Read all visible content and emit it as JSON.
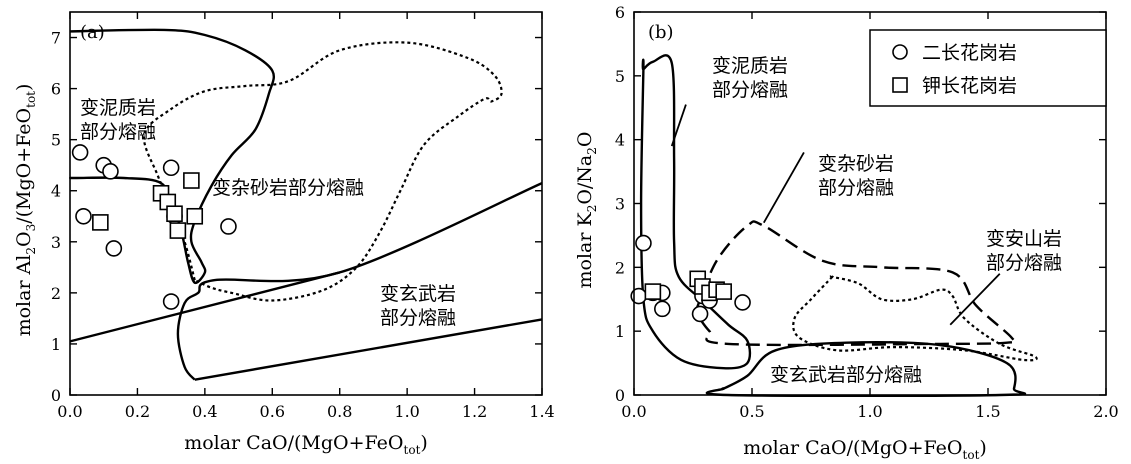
{
  "chart_data": [
    {
      "panel_label": "(a)",
      "type": "scatter",
      "xlabel": "molar CaO/(MgO+FeO",
      "xlabel_sub": "tot",
      "xlabel_end": ")",
      "ylabel_parts": [
        "molar Al",
        "2",
        "O",
        "3",
        "/(MgO+FeO",
        "tot",
        ")"
      ],
      "xlim": [
        0,
        1.4
      ],
      "ylim": [
        0,
        7.5
      ],
      "xticks": [
        0.0,
        0.2,
        0.4,
        0.6,
        0.8,
        1.0,
        1.2,
        1.4
      ],
      "xtick_labels": [
        "0.0",
        "0.2",
        "0.4",
        "0.6",
        "0.8",
        "1.0",
        "1.2",
        "1.4"
      ],
      "yticks": [
        0,
        1,
        2,
        3,
        4,
        5,
        6,
        7
      ],
      "ytick_labels": [
        "0",
        "1",
        "2",
        "3",
        "4",
        "5",
        "6",
        "7"
      ],
      "series": [
        {
          "name": "二长花岗岩",
          "marker": "circle",
          "points": [
            [
              0.03,
              4.75
            ],
            [
              0.04,
              3.5
            ],
            [
              0.1,
              4.5
            ],
            [
              0.12,
              4.38
            ],
            [
              0.13,
              2.87
            ],
            [
              0.3,
              4.45
            ],
            [
              0.31,
              3.5
            ],
            [
              0.3,
              1.83
            ],
            [
              0.47,
              3.3
            ]
          ]
        },
        {
          "name": "钾长花岗岩",
          "marker": "square",
          "points": [
            [
              0.09,
              3.38
            ],
            [
              0.27,
              3.95
            ],
            [
              0.29,
              3.78
            ],
            [
              0.31,
              3.55
            ],
            [
              0.32,
              3.22
            ],
            [
              0.36,
              4.2
            ],
            [
              0.37,
              3.5
            ]
          ]
        }
      ],
      "regions": [
        {
          "label_lines": [
            "变泥质岩",
            "部分熔融"
          ],
          "style": "solid",
          "outline": [
            [
              0.0,
              7.12
            ],
            [
              0.28,
              7.15
            ],
            [
              0.4,
              7.05
            ],
            [
              0.52,
              6.75
            ],
            [
              0.6,
              6.35
            ],
            [
              0.59,
              5.9
            ],
            [
              0.55,
              5.2
            ],
            [
              0.48,
              4.7
            ],
            [
              0.42,
              4.1
            ],
            [
              0.37,
              3.4
            ],
            [
              0.36,
              3.0
            ],
            [
              0.39,
              2.6
            ],
            [
              0.4,
              2.4
            ],
            [
              0.37,
              2.2
            ],
            [
              0.35,
              2.6
            ],
            [
              0.33,
              3.2
            ],
            [
              0.3,
              3.7
            ],
            [
              0.27,
              4.15
            ],
            [
              0.16,
              4.25
            ],
            [
              0.02,
              4.25
            ],
            [
              0.0,
              4.25
            ]
          ]
        },
        {
          "label_lines": [
            "变杂砂岩部分熔融"
          ],
          "style": "dotted",
          "outline": [
            [
              0.37,
              2.25
            ],
            [
              0.34,
              3.0
            ],
            [
              0.3,
              3.7
            ],
            [
              0.26,
              4.3
            ],
            [
              0.22,
              5.1
            ],
            [
              0.3,
              5.6
            ],
            [
              0.4,
              5.95
            ],
            [
              0.52,
              6.05
            ],
            [
              0.65,
              6.15
            ],
            [
              0.8,
              6.75
            ],
            [
              1.0,
              6.9
            ],
            [
              1.18,
              6.6
            ],
            [
              1.26,
              6.25
            ],
            [
              1.28,
              5.9
            ],
            [
              1.25,
              5.75
            ],
            [
              1.23,
              5.8
            ],
            [
              1.15,
              5.45
            ],
            [
              1.05,
              4.9
            ],
            [
              0.98,
              4.0
            ],
            [
              0.92,
              3.2
            ],
            [
              0.85,
              2.5
            ],
            [
              0.75,
              2.05
            ],
            [
              0.6,
              1.85
            ],
            [
              0.48,
              2.0
            ],
            [
              0.42,
              2.1
            ],
            [
              0.37,
              2.25
            ]
          ]
        },
        {
          "label_lines": [
            "变玄武岩",
            "部分熔融"
          ],
          "style": "solid",
          "outline": [
            [
              0.37,
              0.3
            ],
            [
              0.34,
              0.55
            ],
            [
              0.32,
              1.2
            ],
            [
              0.34,
              1.8
            ],
            [
              0.38,
              2.0
            ],
            [
              0.43,
              2.25
            ],
            [
              0.8,
              2.4
            ],
            [
              1.4,
              4.15
            ]
          ],
          "lower_line": [
            [
              0.37,
              0.3
            ],
            [
              1.4,
              1.48
            ]
          ],
          "upper_line": [
            [
              0.0,
              1.05
            ],
            [
              0.8,
              2.4
            ]
          ]
        }
      ]
    },
    {
      "panel_label": "(b)",
      "type": "scatter",
      "xlabel": "molar CaO/(MgO+FeO",
      "xlabel_sub": "tot",
      "xlabel_end": ")",
      "ylabel_parts": [
        "molar K",
        "2",
        "O/Na",
        "2",
        "O"
      ],
      "xlim": [
        0,
        2.0
      ],
      "ylim": [
        0,
        6
      ],
      "xticks": [
        0.0,
        0.5,
        1.0,
        1.5,
        2.0
      ],
      "xtick_labels": [
        "0.0",
        "0.5",
        "1.0",
        "1.5",
        "2.0"
      ],
      "yticks": [
        0,
        1,
        2,
        3,
        4,
        5,
        6
      ],
      "ytick_labels": [
        "0",
        "1",
        "2",
        "3",
        "4",
        "5",
        "6"
      ],
      "legend": {
        "position": "top-right",
        "entries": [
          {
            "label": "二长花岗岩",
            "marker": "circle"
          },
          {
            "label": "钾长花岗岩",
            "marker": "square"
          }
        ]
      },
      "series": [
        {
          "name": "二长花岗岩",
          "marker": "circle",
          "points": [
            [
              0.02,
              1.55
            ],
            [
              0.04,
              2.38
            ],
            [
              0.08,
              1.6
            ],
            [
              0.12,
              1.35
            ],
            [
              0.12,
              1.6
            ],
            [
              0.28,
              1.27
            ],
            [
              0.29,
              1.55
            ],
            [
              0.32,
              1.48
            ],
            [
              0.46,
              1.45
            ]
          ]
        },
        {
          "name": "钾长花岗岩",
          "marker": "square",
          "points": [
            [
              0.08,
              1.62
            ],
            [
              0.27,
              1.82
            ],
            [
              0.29,
              1.7
            ],
            [
              0.32,
              1.6
            ],
            [
              0.35,
              1.65
            ],
            [
              0.38,
              1.62
            ]
          ]
        }
      ],
      "regions": [
        {
          "label_lines": [
            "变泥质岩",
            "部分熔融"
          ],
          "style": "solid",
          "outline": [
            [
              0.04,
              5.1
            ],
            [
              0.08,
              5.22
            ],
            [
              0.16,
              5.2
            ],
            [
              0.17,
              3.7
            ],
            [
              0.17,
              2.4
            ],
            [
              0.19,
              1.85
            ],
            [
              0.3,
              1.45
            ],
            [
              0.4,
              1.1
            ],
            [
              0.48,
              0.85
            ],
            [
              0.48,
              0.5
            ],
            [
              0.38,
              0.42
            ],
            [
              0.2,
              0.55
            ],
            [
              0.08,
              1.0
            ],
            [
              0.04,
              1.5
            ],
            [
              0.03,
              3.0
            ],
            [
              0.04,
              5.1
            ]
          ]
        },
        {
          "label_lines": [
            "变杂砂岩",
            "部分熔融"
          ],
          "style": "dashed",
          "outline": [
            [
              0.26,
              1.3
            ],
            [
              0.35,
              2.1
            ],
            [
              0.48,
              2.65
            ],
            [
              0.55,
              2.65
            ],
            [
              0.8,
              2.1
            ],
            [
              1.05,
              2.0
            ],
            [
              1.35,
              1.92
            ],
            [
              1.45,
              1.4
            ],
            [
              1.6,
              0.9
            ],
            [
              1.58,
              0.82
            ],
            [
              1.3,
              0.8
            ],
            [
              0.4,
              0.8
            ],
            [
              0.32,
              1.0
            ],
            [
              0.26,
              1.3
            ]
          ]
        },
        {
          "label_lines": [
            "变安山岩",
            "部分熔融"
          ],
          "style": "dotted",
          "outline": [
            [
              0.84,
              1.85
            ],
            [
              0.75,
              1.5
            ],
            [
              0.68,
              1.2
            ],
            [
              0.7,
              0.9
            ],
            [
              0.86,
              0.7
            ],
            [
              1.1,
              0.75
            ],
            [
              1.4,
              0.7
            ],
            [
              1.65,
              0.55
            ],
            [
              1.7,
              0.6
            ],
            [
              1.55,
              0.8
            ],
            [
              1.4,
              1.2
            ],
            [
              1.35,
              1.55
            ],
            [
              1.3,
              1.65
            ],
            [
              1.18,
              1.5
            ],
            [
              1.05,
              1.5
            ],
            [
              0.95,
              1.75
            ],
            [
              0.84,
              1.85
            ]
          ]
        },
        {
          "label_lines": [
            "变玄武岩部分熔融"
          ],
          "style": "solid",
          "outline": [
            [
              0.38,
              0.1
            ],
            [
              0.48,
              0.3
            ],
            [
              0.6,
              0.7
            ],
            [
              0.9,
              0.82
            ],
            [
              1.3,
              0.78
            ],
            [
              1.58,
              0.5
            ],
            [
              1.61,
              0.1
            ],
            [
              1.55,
              0.0
            ],
            [
              0.4,
              0.0
            ],
            [
              0.38,
              0.1
            ]
          ]
        }
      ]
    }
  ]
}
